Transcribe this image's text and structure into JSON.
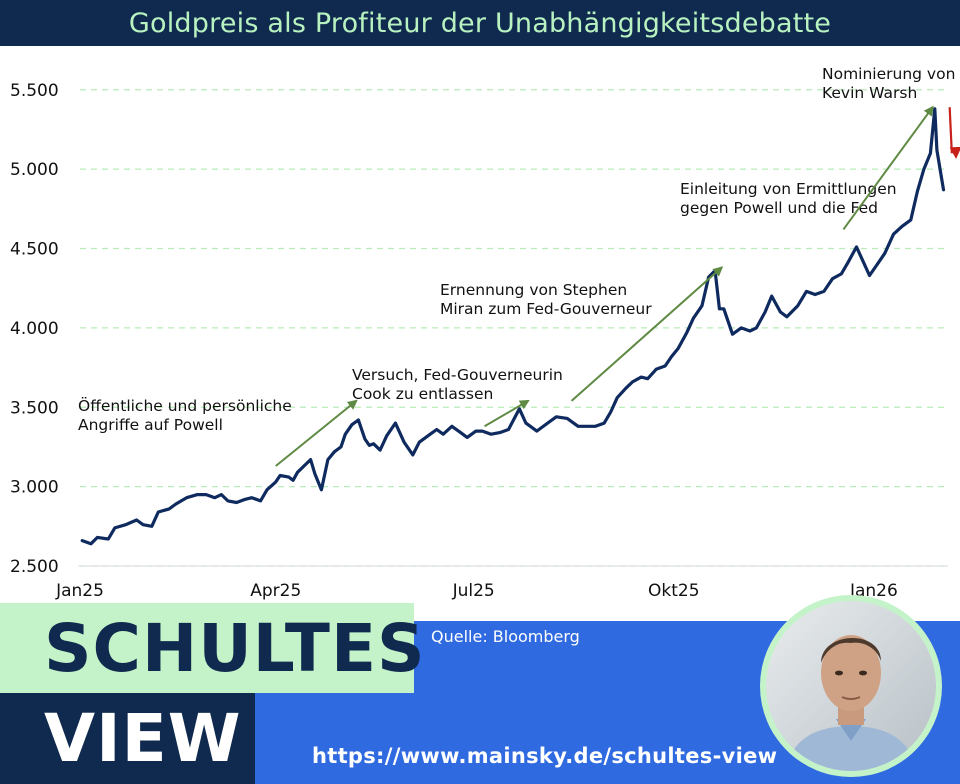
{
  "title": "Goldpreis als Profiteur der Unabhängigkeitsdebatte",
  "chart_data": {
    "type": "line",
    "y_ticks": [
      2500,
      3000,
      3500,
      4000,
      4500,
      5000,
      5500
    ],
    "y_tick_labels": [
      "2.500",
      "3.000",
      "3.500",
      "4.000",
      "4.500",
      "5.000",
      "5.500"
    ],
    "ylim": [
      2500,
      5700
    ],
    "x_ticks": [
      {
        "label": "Jan25",
        "date": "2025-01-01"
      },
      {
        "label": "Apr25",
        "date": "2025-04-01"
      },
      {
        "label": "Jul25",
        "date": "2025-07-01"
      },
      {
        "label": "Okt25",
        "date": "2025-10-01"
      },
      {
        "label": "Jan26",
        "date": "2026-01-01"
      }
    ],
    "xlim": [
      "2025-01-01",
      "2026-02-05"
    ],
    "grid": "horizontal dashed",
    "series": [
      {
        "color": "#0f2a5e",
        "points": [
          [
            "2025-01-02",
            2660
          ],
          [
            "2025-01-06",
            2640
          ],
          [
            "2025-01-09",
            2680
          ],
          [
            "2025-01-14",
            2670
          ],
          [
            "2025-01-17",
            2740
          ],
          [
            "2025-01-22",
            2760
          ],
          [
            "2025-01-27",
            2790
          ],
          [
            "2025-01-30",
            2760
          ],
          [
            "2025-02-03",
            2750
          ],
          [
            "2025-02-06",
            2840
          ],
          [
            "2025-02-11",
            2860
          ],
          [
            "2025-02-14",
            2890
          ],
          [
            "2025-02-19",
            2930
          ],
          [
            "2025-02-24",
            2950
          ],
          [
            "2025-02-28",
            2950
          ],
          [
            "2025-03-04",
            2930
          ],
          [
            "2025-03-07",
            2950
          ],
          [
            "2025-03-10",
            2910
          ],
          [
            "2025-03-14",
            2900
          ],
          [
            "2025-03-18",
            2920
          ],
          [
            "2025-03-21",
            2930
          ],
          [
            "2025-03-25",
            2910
          ],
          [
            "2025-03-28",
            2980
          ],
          [
            "2025-04-01",
            3030
          ],
          [
            "2025-04-03",
            3070
          ],
          [
            "2025-04-07",
            3060
          ],
          [
            "2025-04-09",
            3040
          ],
          [
            "2025-04-11",
            3090
          ],
          [
            "2025-04-14",
            3130
          ],
          [
            "2025-04-17",
            3170
          ],
          [
            "2025-04-19",
            3080
          ],
          [
            "2025-04-22",
            2980
          ],
          [
            "2025-04-25",
            3170
          ],
          [
            "2025-04-28",
            3220
          ],
          [
            "2025-05-01",
            3250
          ],
          [
            "2025-05-03",
            3330
          ],
          [
            "2025-05-06",
            3390
          ],
          [
            "2025-05-09",
            3420
          ],
          [
            "2025-05-12",
            3300
          ],
          [
            "2025-05-14",
            3260
          ],
          [
            "2025-05-16",
            3270
          ],
          [
            "2025-05-19",
            3230
          ],
          [
            "2025-05-22",
            3320
          ],
          [
            "2025-05-26",
            3400
          ],
          [
            "2025-05-30",
            3280
          ],
          [
            "2025-06-03",
            3200
          ],
          [
            "2025-06-06",
            3280
          ],
          [
            "2025-06-11",
            3330
          ],
          [
            "2025-06-14",
            3360
          ],
          [
            "2025-06-17",
            3330
          ],
          [
            "2025-06-21",
            3380
          ],
          [
            "2025-06-25",
            3340
          ],
          [
            "2025-06-28",
            3310
          ],
          [
            "2025-07-02",
            3350
          ],
          [
            "2025-07-05",
            3350
          ],
          [
            "2025-07-09",
            3330
          ],
          [
            "2025-07-13",
            3340
          ],
          [
            "2025-07-17",
            3360
          ],
          [
            "2025-07-22",
            3490
          ],
          [
            "2025-07-25",
            3400
          ],
          [
            "2025-07-30",
            3350
          ],
          [
            "2025-08-04",
            3400
          ],
          [
            "2025-08-08",
            3440
          ],
          [
            "2025-08-13",
            3430
          ],
          [
            "2025-08-18",
            3380
          ],
          [
            "2025-08-22",
            3380
          ],
          [
            "2025-08-26",
            3380
          ],
          [
            "2025-08-30",
            3400
          ],
          [
            "2025-09-02",
            3470
          ],
          [
            "2025-09-05",
            3560
          ],
          [
            "2025-09-09",
            3620
          ],
          [
            "2025-09-12",
            3660
          ],
          [
            "2025-09-16",
            3690
          ],
          [
            "2025-09-19",
            3680
          ],
          [
            "2025-09-23",
            3740
          ],
          [
            "2025-09-27",
            3760
          ],
          [
            "2025-09-30",
            3820
          ],
          [
            "2025-10-03",
            3870
          ],
          [
            "2025-10-07",
            3970
          ],
          [
            "2025-10-10",
            4060
          ],
          [
            "2025-10-14",
            4140
          ],
          [
            "2025-10-17",
            4320
          ],
          [
            "2025-10-20",
            4360
          ],
          [
            "2025-10-22",
            4120
          ],
          [
            "2025-10-24",
            4120
          ],
          [
            "2025-10-28",
            3960
          ],
          [
            "2025-11-01",
            4000
          ],
          [
            "2025-11-05",
            3980
          ],
          [
            "2025-11-08",
            4000
          ],
          [
            "2025-11-12",
            4100
          ],
          [
            "2025-11-15",
            4200
          ],
          [
            "2025-11-19",
            4100
          ],
          [
            "2025-11-22",
            4070
          ],
          [
            "2025-11-27",
            4140
          ],
          [
            "2025-12-01",
            4230
          ],
          [
            "2025-12-05",
            4210
          ],
          [
            "2025-12-09",
            4230
          ],
          [
            "2025-12-13",
            4310
          ],
          [
            "2025-12-17",
            4340
          ],
          [
            "2025-12-20",
            4410
          ],
          [
            "2025-12-24",
            4510
          ],
          [
            "2025-12-27",
            4420
          ],
          [
            "2025-12-30",
            4330
          ],
          [
            "2026-01-02",
            4390
          ],
          [
            "2026-01-06",
            4470
          ],
          [
            "2026-01-10",
            4590
          ],
          [
            "2026-01-14",
            4640
          ],
          [
            "2026-01-18",
            4680
          ],
          [
            "2026-01-21",
            4860
          ],
          [
            "2026-01-24",
            5000
          ],
          [
            "2026-01-27",
            5100
          ],
          [
            "2026-01-28",
            5240
          ],
          [
            "2026-01-29",
            5380
          ],
          [
            "2026-01-30",
            5120
          ],
          [
            "2026-02-02",
            4870
          ]
        ]
      }
    ],
    "annotations": [
      {
        "lines": [
          "Öffentliche und persönliche",
          "Angriffe auf Powell"
        ],
        "arrow_from": [
          "2025-04-01",
          3130
        ],
        "arrow_to": [
          "2025-05-08",
          3540
        ]
      },
      {
        "lines": [
          "Versuch, Fed-Gouverneurin",
          "Cook zu entlassen"
        ],
        "arrow_from": [
          "2025-07-06",
          3380
        ],
        "arrow_to": [
          "2025-07-26",
          3540
        ]
      },
      {
        "lines": [
          "Ernennung von Stephen",
          "Miran zum Fed-Gouverneur"
        ],
        "arrow_from": [
          "2025-08-15",
          3540
        ],
        "arrow_to": [
          "2025-10-23",
          4380
        ]
      },
      {
        "lines": [
          "Einleitung von Ermittlungen",
          "gegen Powell und die Fed"
        ],
        "arrow_from": [
          "2025-12-18",
          4620
        ],
        "arrow_to": [
          "2026-01-28",
          5390
        ]
      },
      {
        "lines": [
          "Nominierung von",
          "Kevin Warsh"
        ]
      }
    ],
    "down_arrow": {
      "from": [
        "2026-02-03",
        5390
      ],
      "to": [
        "2026-02-04",
        5100
      ],
      "color": "#c8201b"
    },
    "arrow_color": "#5f8a43"
  },
  "footer": {
    "logo_line1": "SCHULTES",
    "logo_line2": "VIEW",
    "source": "Quelle: Bloomberg",
    "url": "https://www.mainsky.de/schultes-view"
  },
  "colors": {
    "navy": "#0f2a4e",
    "mint": "#c5f3c9",
    "blue": "#2f6ae0",
    "line": "#0f2a5e",
    "arrow_green": "#5f8a43",
    "arrow_red": "#c8201b"
  }
}
